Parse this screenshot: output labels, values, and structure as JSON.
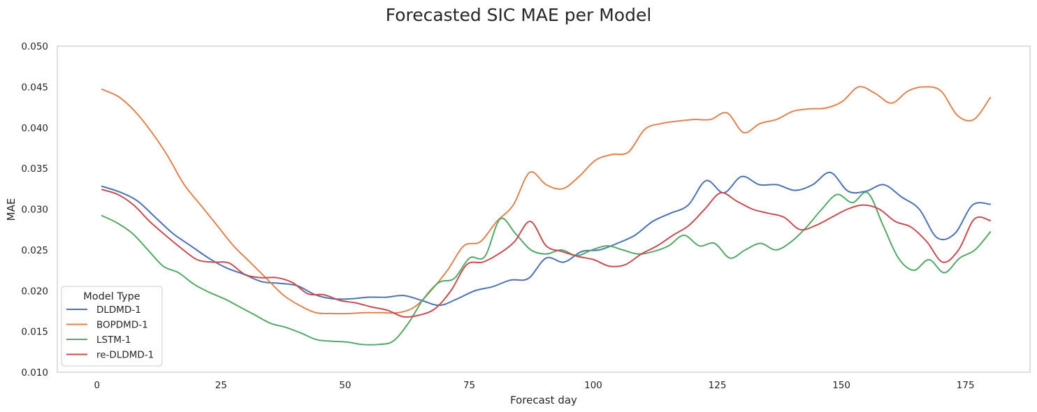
{
  "chart_data": {
    "type": "line",
    "title": "Forecasted SIC MAE per Model",
    "xlabel": "Forecast day",
    "ylabel": "MAE",
    "xlim": [
      -8,
      188
    ],
    "ylim": [
      0.01,
      0.05
    ],
    "xticks": [
      0,
      25,
      50,
      75,
      100,
      125,
      150,
      175
    ],
    "xtick_labels": [
      "0",
      "25",
      "50",
      "75",
      "100",
      "125",
      "150",
      "175"
    ],
    "yticks": [
      0.01,
      0.015,
      0.02,
      0.025,
      0.03,
      0.035,
      0.04,
      0.045,
      0.05
    ],
    "ytick_labels": [
      "0.010",
      "0.015",
      "0.020",
      "0.025",
      "0.030",
      "0.035",
      "0.040",
      "0.045",
      "0.050"
    ],
    "grid": false,
    "legend": {
      "title": "Model Type",
      "position": "lower-left"
    },
    "x_start": 1,
    "x_step": 5,
    "series": [
      {
        "name": "DLDMD-1",
        "color": "#4C72B0",
        "values": [
          0.0328,
          0.0321,
          0.031,
          0.029,
          0.027,
          0.0255,
          0.024,
          0.0228,
          0.022,
          0.0211,
          0.0209,
          0.0206,
          0.0195,
          0.019,
          0.019,
          0.0192,
          0.0192,
          0.0194,
          0.0188,
          0.0182,
          0.019,
          0.02,
          0.0205,
          0.0213,
          0.0215,
          0.024,
          0.0235,
          0.0248,
          0.025,
          0.0258,
          0.0268,
          0.0285,
          0.0295,
          0.0305,
          0.0335,
          0.032,
          0.034,
          0.033,
          0.033,
          0.0323,
          0.033,
          0.0345,
          0.0322,
          0.0322,
          0.033,
          0.0315,
          0.03,
          0.0265,
          0.027,
          0.0305,
          0.0306
        ]
      },
      {
        "name": "BOPDMD-1",
        "color": "#DD8452",
        "values": [
          0.0447,
          0.0438,
          0.042,
          0.0395,
          0.0365,
          0.033,
          0.0305,
          0.028,
          0.0255,
          0.0235,
          0.0215,
          0.0195,
          0.0182,
          0.0173,
          0.0172,
          0.0172,
          0.0173,
          0.0173,
          0.0173,
          0.018,
          0.02,
          0.0225,
          0.0255,
          0.026,
          0.0285,
          0.0305,
          0.0345,
          0.033,
          0.0325,
          0.034,
          0.036,
          0.0367,
          0.037,
          0.0398,
          0.0405,
          0.0408,
          0.041,
          0.041,
          0.0418,
          0.0394,
          0.0405,
          0.041,
          0.042,
          0.0423,
          0.0424,
          0.0432,
          0.045,
          0.0442,
          0.043,
          0.0445,
          0.045,
          0.0445,
          0.0415,
          0.041,
          0.0437
        ]
      },
      {
        "name": "LSTM-1",
        "color": "#55A868",
        "values": [
          0.0292,
          0.0283,
          0.027,
          0.025,
          0.023,
          0.0222,
          0.0208,
          0.0198,
          0.019,
          0.018,
          0.017,
          0.016,
          0.0155,
          0.0148,
          0.014,
          0.0138,
          0.0137,
          0.0134,
          0.0134,
          0.0138,
          0.016,
          0.019,
          0.021,
          0.0215,
          0.024,
          0.0242,
          0.0288,
          0.027,
          0.025,
          0.0245,
          0.025,
          0.0243,
          0.025,
          0.0255,
          0.025,
          0.0245,
          0.0248,
          0.0255,
          0.0268,
          0.0255,
          0.0258,
          0.024,
          0.025,
          0.0258,
          0.025,
          0.026,
          0.0278,
          0.03,
          0.0318,
          0.0308,
          0.032,
          0.028,
          0.024,
          0.0225,
          0.0238,
          0.0222,
          0.024,
          0.025,
          0.0272
        ]
      },
      {
        "name": "re-DLDMD-1",
        "color": "#C44E52",
        "values": [
          0.0324,
          0.0318,
          0.0305,
          0.0285,
          0.0268,
          0.0252,
          0.0238,
          0.0235,
          0.0234,
          0.022,
          0.0216,
          0.0216,
          0.021,
          0.0196,
          0.0195,
          0.0188,
          0.0185,
          0.018,
          0.0176,
          0.0168,
          0.017,
          0.0178,
          0.02,
          0.0232,
          0.0235,
          0.0245,
          0.026,
          0.0285,
          0.0255,
          0.0248,
          0.0242,
          0.0238,
          0.023,
          0.0232,
          0.0245,
          0.0255,
          0.0268,
          0.028,
          0.03,
          0.032,
          0.031,
          0.03,
          0.0295,
          0.029,
          0.0275,
          0.028,
          0.029,
          0.03,
          0.0305,
          0.03,
          0.0285,
          0.0278,
          0.026,
          0.0235,
          0.025,
          0.0288,
          0.0286
        ]
      }
    ]
  }
}
